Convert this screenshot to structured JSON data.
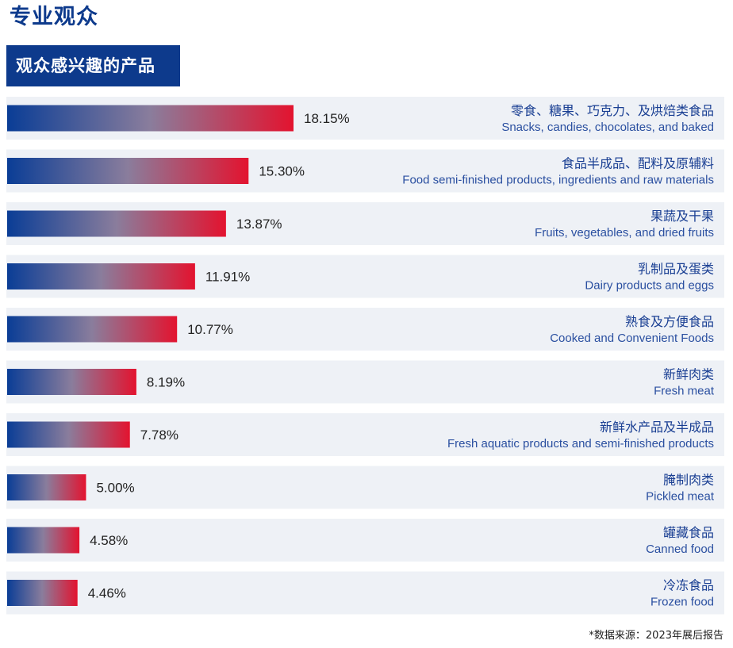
{
  "page": {
    "title": "专业观众",
    "section_header": "观众感兴趣的产品",
    "source_note": "*数据来源：2023年展后报告"
  },
  "colors": {
    "brand": "#0d3a8c",
    "bar_start": "#0a3d96",
    "bar_mid": "#8a7d9c",
    "bar_end": "#e3132f",
    "row_bg": "#eef1f6"
  },
  "chart_data": {
    "type": "bar",
    "orientation": "horizontal",
    "title": "观众感兴趣的产品",
    "unit": "%",
    "categories": [
      {
        "zh": "零食、糖果、巧克力、及烘焙类食品",
        "en": "Snacks, candies, chocolates, and baked"
      },
      {
        "zh": "食品半成品、配料及原辅料",
        "en": "Food semi-finished products, ingredients and raw materials"
      },
      {
        "zh": "果蔬及干果",
        "en": "Fruits, vegetables, and dried fruits"
      },
      {
        "zh": "乳制品及蛋类",
        "en": "Dairy products and eggs"
      },
      {
        "zh": "熟食及方便食品",
        "en": "Cooked and Convenient Foods"
      },
      {
        "zh": "新鲜肉类",
        "en": "Fresh meat"
      },
      {
        "zh": "新鲜水产品及半成品",
        "en": "Fresh aquatic products and semi-finished products"
      },
      {
        "zh": "腌制肉类",
        "en": "Pickled meat"
      },
      {
        "zh": "罐藏食品",
        "en": "Canned food"
      },
      {
        "zh": "冷冻食品",
        "en": "Frozen food"
      }
    ],
    "values": [
      18.15,
      15.3,
      13.87,
      11.91,
      10.77,
      8.19,
      7.78,
      5.0,
      4.58,
      4.46
    ],
    "value_labels": [
      "18.15%",
      "15.30%",
      "13.87%",
      "11.91%",
      "10.77%",
      "8.19%",
      "7.78%",
      "5.00%",
      "4.58%",
      "4.46%"
    ],
    "xlim": [
      0,
      18.15
    ]
  }
}
